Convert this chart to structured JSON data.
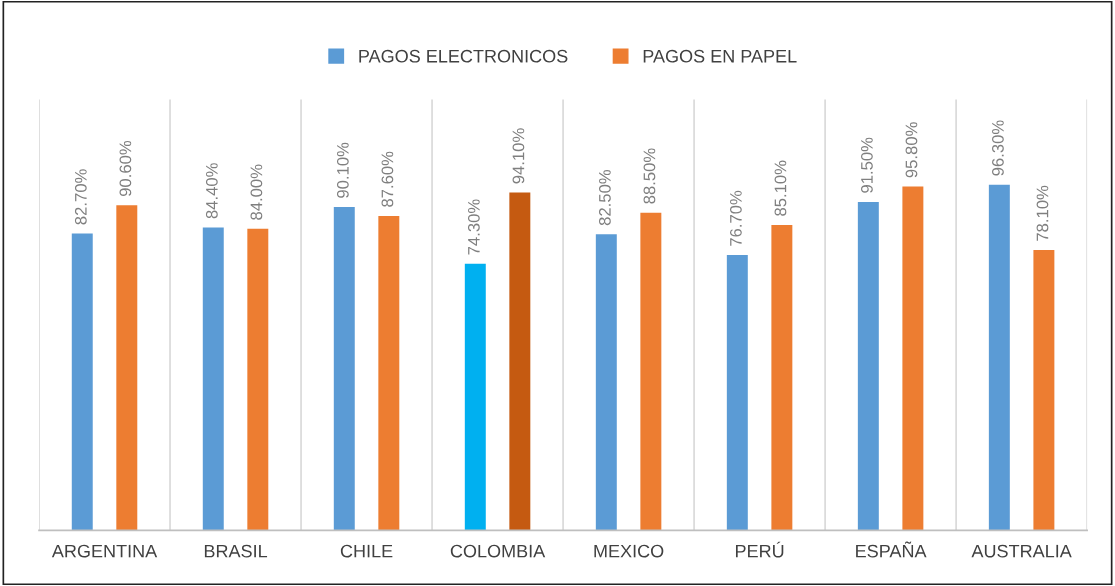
{
  "chart_data": {
    "type": "bar",
    "categories": [
      "ARGENTINA",
      "BRASIL",
      "CHILE",
      "COLOMBIA",
      "MEXICO",
      "PERÚ",
      "ESPAÑA",
      "AUSTRALIA"
    ],
    "series": [
      {
        "name": "PAGOS ELECTRONICOS",
        "color": "#5b9bd5",
        "colors": [
          "#5b9bd5",
          "#5b9bd5",
          "#5b9bd5",
          "#00b0f0",
          "#5b9bd5",
          "#5b9bd5",
          "#5b9bd5",
          "#5b9bd5"
        ],
        "values": [
          82.7,
          84.4,
          90.1,
          74.3,
          82.5,
          76.7,
          91.5,
          96.3
        ],
        "value_labels": [
          "82.70%",
          "84.40%",
          "90.10%",
          "74.30%",
          "82.50%",
          "76.70%",
          "91.50%",
          "96.30%"
        ]
      },
      {
        "name": "PAGOS EN PAPEL",
        "color": "#ed7d31",
        "colors": [
          "#ed7d31",
          "#ed7d31",
          "#ed7d31",
          "#c55a11",
          "#ed7d31",
          "#ed7d31",
          "#ed7d31",
          "#ed7d31"
        ],
        "values": [
          90.6,
          84.0,
          87.6,
          94.1,
          88.5,
          85.1,
          95.8,
          78.1
        ],
        "value_labels": [
          "90.60%",
          "84.00%",
          "87.60%",
          "94.10%",
          "88.50%",
          "85.10%",
          "95.80%",
          "78.10%"
        ]
      }
    ],
    "ylim": [
      0,
      120
    ],
    "tick_labels": "x",
    "grid": "x",
    "legend": "top"
  }
}
